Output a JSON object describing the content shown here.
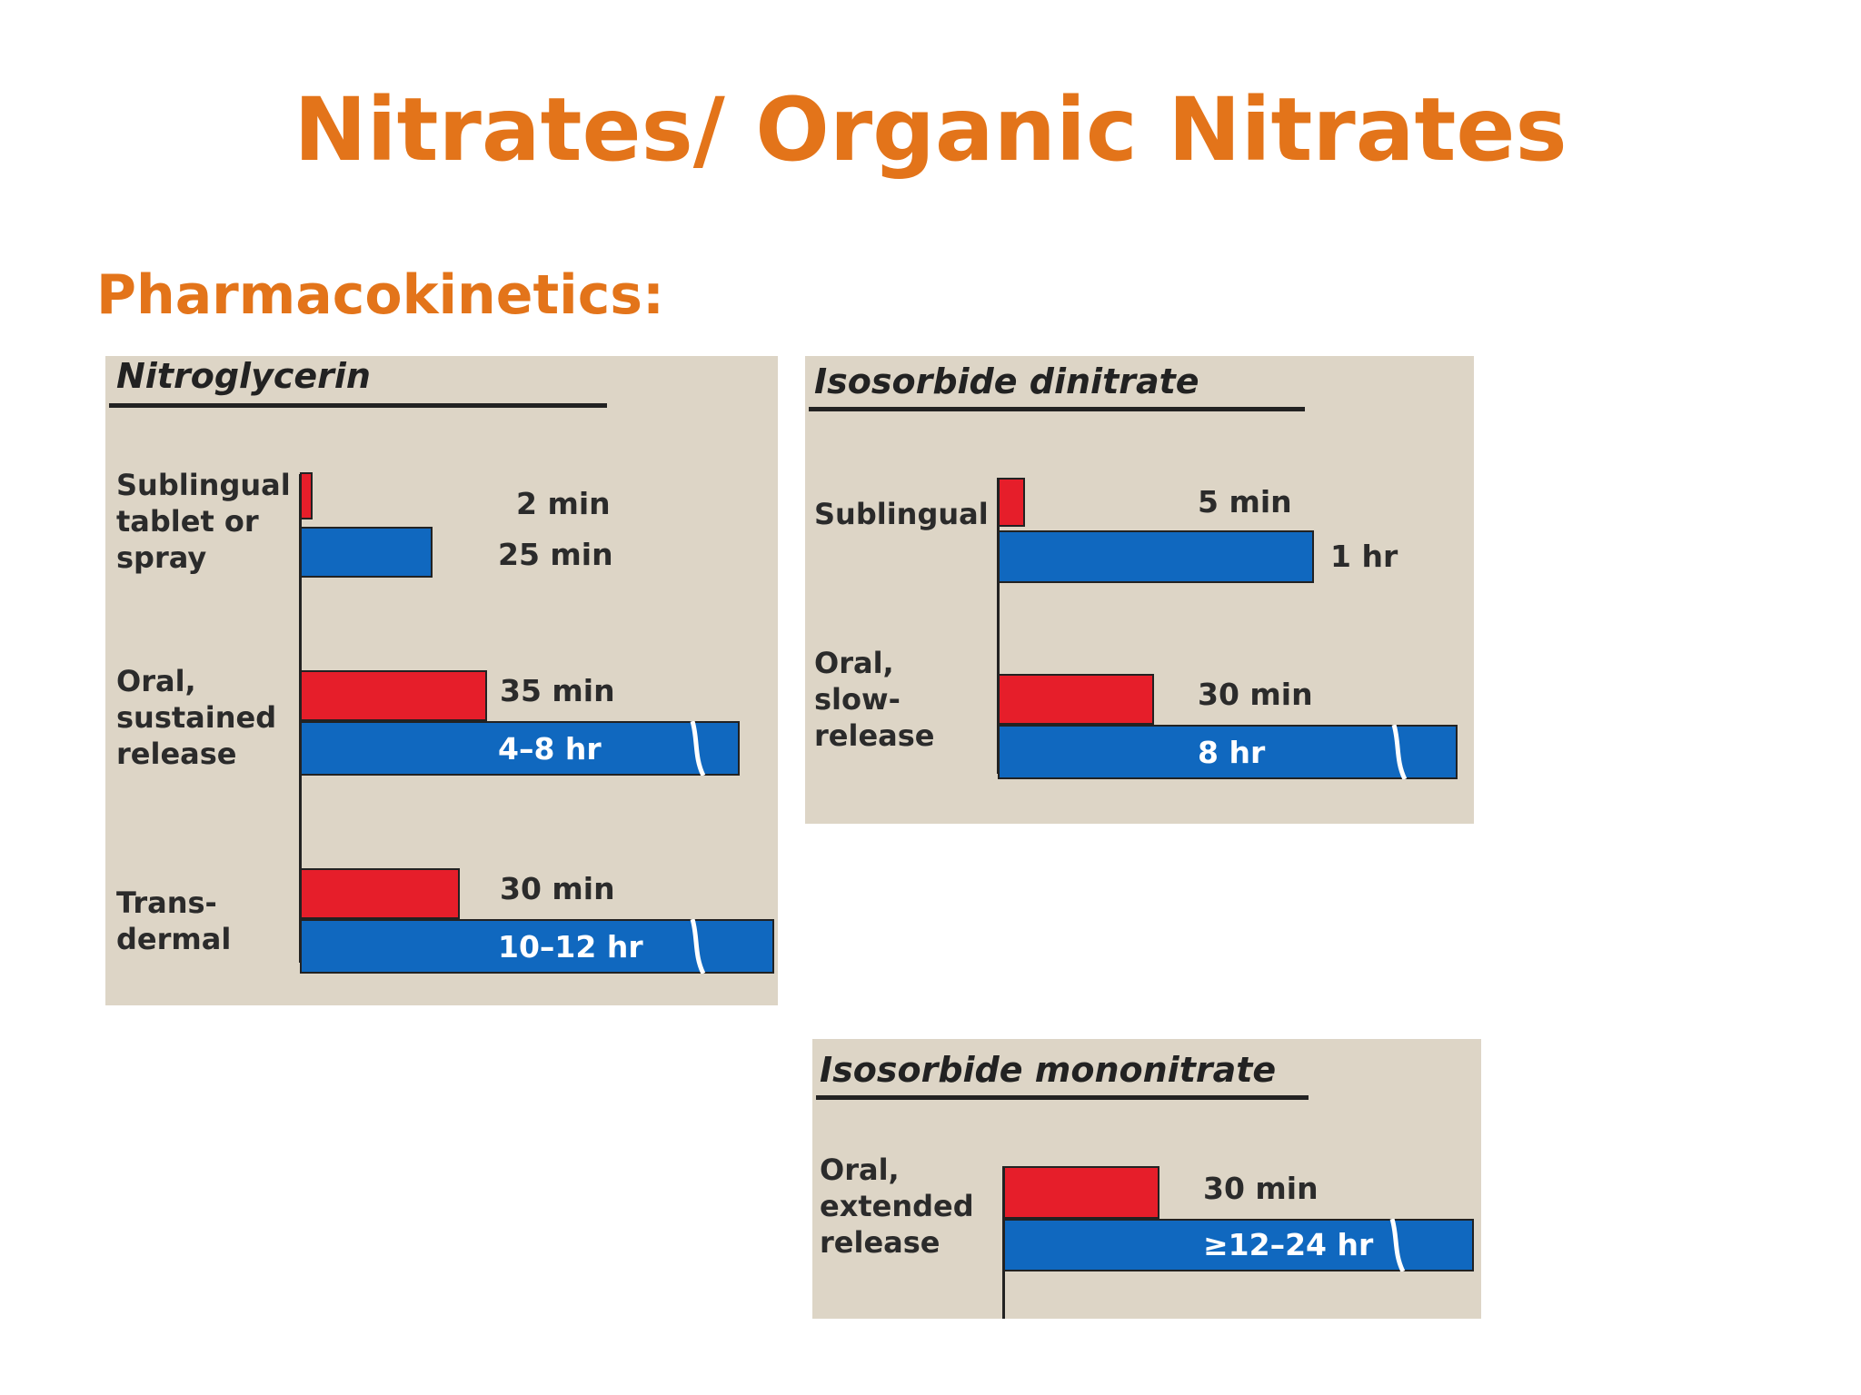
{
  "title": "Nitrates/ Organic Nitrates",
  "section_heading": "Pharmacokinetics:",
  "colors": {
    "title": "#e3741a",
    "onset_bar": "#e61e2a",
    "duration_bar": "#1068bf",
    "panel_bg": "#ddd5c6"
  },
  "panels": {
    "nitroglycerin": {
      "title": "Nitroglycerin",
      "rows": [
        {
          "label": "Sublingual\ntablet or\nspray",
          "onset": "2 min",
          "duration": "25 min"
        },
        {
          "label": "Oral,\nsustained\nrelease",
          "onset": "35 min",
          "duration": "4–8 hr"
        },
        {
          "label": "Trans-\ndermal",
          "onset": "30 min",
          "duration": "10–12 hr"
        }
      ]
    },
    "isosorbide_dinitrate": {
      "title": "Isosorbide dinitrate",
      "rows": [
        {
          "label": "Sublingual",
          "onset": "5 min",
          "duration": "1 hr"
        },
        {
          "label": "Oral,\nslow-\nrelease",
          "onset": "30 min",
          "duration": "8 hr"
        }
      ]
    },
    "isosorbide_mononitrate": {
      "title": "Isosorbide mononitrate",
      "rows": [
        {
          "label": "Oral,\nextended\nrelease",
          "onset": "30 min",
          "duration": "≥12–24 hr"
        }
      ]
    }
  }
}
